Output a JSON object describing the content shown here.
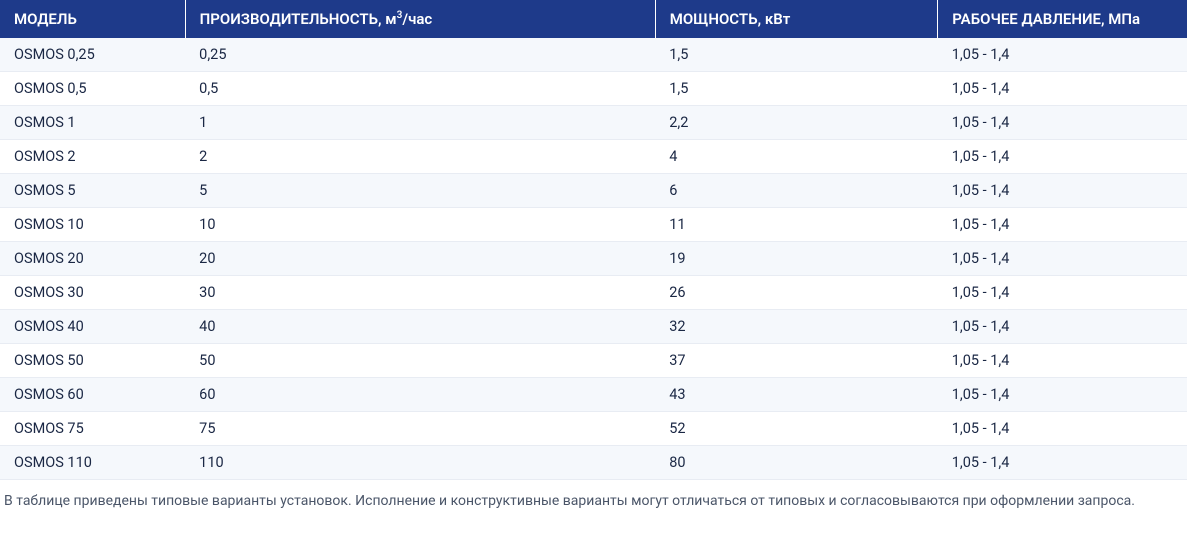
{
  "table": {
    "type": "table",
    "header_bg": "#1e3a8a",
    "header_text_color": "#ffffff",
    "row_odd_bg": "#f5f8fc",
    "row_even_bg": "#ffffff",
    "cell_text_color": "#1a2744",
    "border_color": "#e8ecf3",
    "header_fontsize": 15,
    "cell_fontsize": 14.5,
    "columns": [
      {
        "label": "МОДЕЛЬ",
        "width_pct": 15.6
      },
      {
        "label": "ПРОИЗВОДИТЕЛЬНОСТЬ, м",
        "sup": "3",
        "suffix": "/час",
        "width_pct": 39.6
      },
      {
        "label": "МОЩНОСТЬ, кВт",
        "width_pct": 23.8
      },
      {
        "label": "РАБОЧЕЕ ДАВЛЕНИЕ, МПа",
        "width_pct": 21.0
      }
    ],
    "rows": [
      [
        "OSMOS 0,25",
        "0,25",
        "1,5",
        "1,05 - 1,4"
      ],
      [
        "OSMOS 0,5",
        "0,5",
        "1,5",
        "1,05 - 1,4"
      ],
      [
        "OSMOS 1",
        "1",
        "2,2",
        "1,05 - 1,4"
      ],
      [
        "OSMOS 2",
        "2",
        "4",
        "1,05 - 1,4"
      ],
      [
        "OSMOS 5",
        "5",
        "6",
        "1,05 - 1,4"
      ],
      [
        "OSMOS 10",
        "10",
        "11",
        "1,05 - 1,4"
      ],
      [
        "OSMOS 20",
        "20",
        "19",
        "1,05 - 1,4"
      ],
      [
        "OSMOS 30",
        "30",
        "26",
        "1,05 - 1,4"
      ],
      [
        "OSMOS 40",
        "40",
        "32",
        "1,05 - 1,4"
      ],
      [
        "OSMOS 50",
        "50",
        "37",
        "1,05 - 1,4"
      ],
      [
        "OSMOS 60",
        "60",
        "43",
        "1,05 - 1,4"
      ],
      [
        "OSMOS 75",
        "75",
        "52",
        "1,05 - 1,4"
      ],
      [
        "OSMOS 110",
        "110",
        "80",
        "1,05 - 1,4"
      ]
    ]
  },
  "footnote": "В таблице приведены типовые варианты установок. Исполнение и конструктивные варианты могут отличаться от типовых и согласовываются при оформлении запроса.",
  "footnote_color": "#4a5568",
  "footnote_fontsize": 14
}
